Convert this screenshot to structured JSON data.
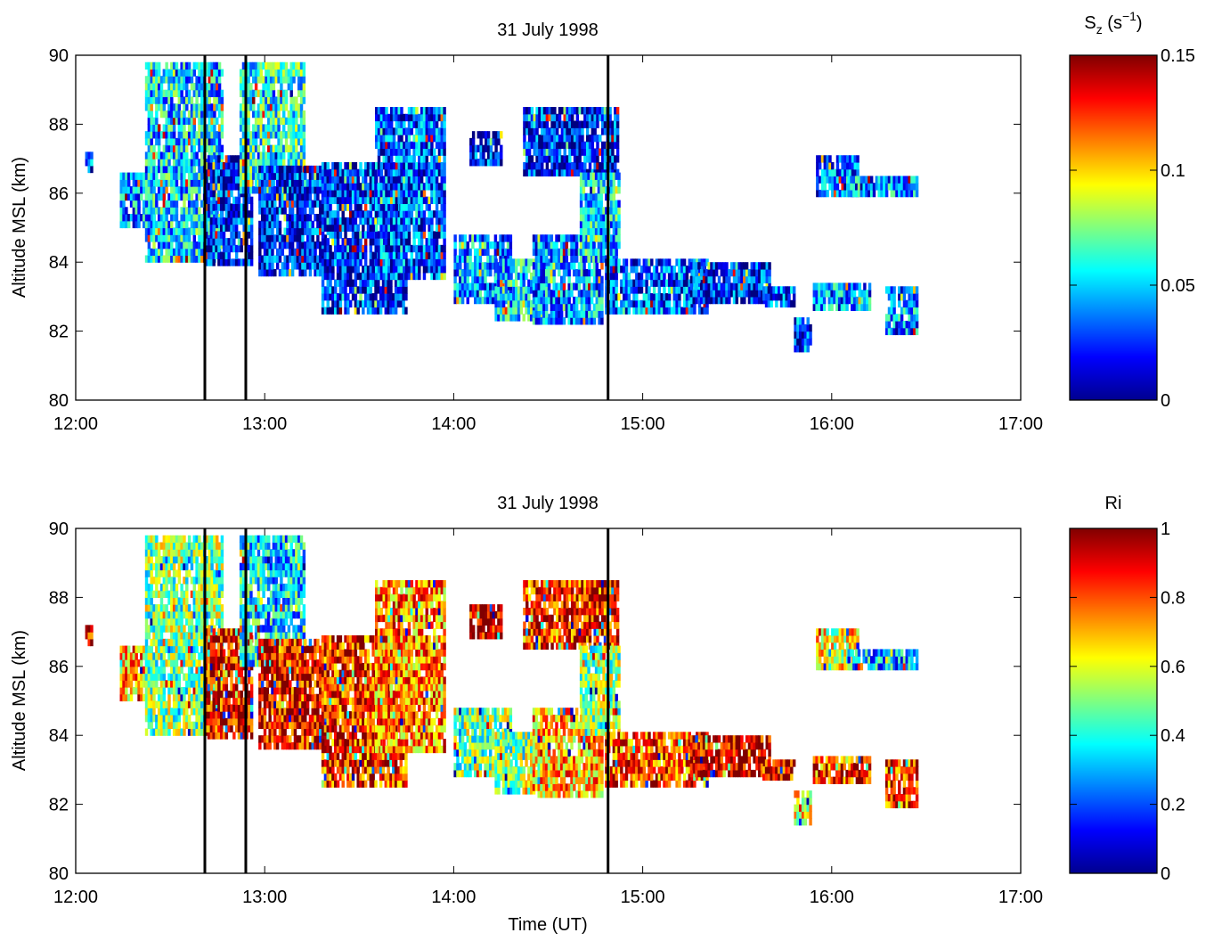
{
  "chart_data": [
    {
      "type": "heatmap",
      "title": "31 July 1998",
      "xlabel": "",
      "ylabel": "Altitude MSL (km)",
      "xlim": [
        "12:00",
        "17:00"
      ],
      "ylim": [
        80,
        90
      ],
      "xticks": [
        "12:00",
        "13:00",
        "14:00",
        "15:00",
        "16:00",
        "17:00"
      ],
      "yticks": [
        "80",
        "82",
        "84",
        "86",
        "88",
        "90"
      ],
      "colorbar": {
        "label_base": "S",
        "label_sub": "z",
        "label_unit_open": " (s",
        "label_sup": "−1",
        "label_unit_close": ")",
        "range": [
          0,
          0.15
        ],
        "ticks": [
          "0",
          "0.05",
          "0.1",
          "0.15"
        ],
        "colormap": "jet"
      },
      "vertical_lines": [
        "12:41",
        "12:54",
        "14:49"
      ],
      "regions": [
        {
          "t0": "12:03",
          "t1": "12:05",
          "z0": 86.6,
          "z1": 87.2,
          "level": 0.03
        },
        {
          "t0": "12:14",
          "t1": "12:25",
          "z0": 85.0,
          "z1": 86.5,
          "level": 0.04
        },
        {
          "t0": "12:22",
          "t1": "12:46",
          "z0": 84.0,
          "z1": 89.7,
          "level": 0.05
        },
        {
          "t0": "12:41",
          "t1": "12:56",
          "z0": 83.9,
          "z1": 87.0,
          "level": 0.02
        },
        {
          "t0": "12:52",
          "t1": "13:12",
          "z0": 86.0,
          "z1": 89.7,
          "level": 0.06
        },
        {
          "t0": "12:58",
          "t1": "13:20",
          "z0": 83.6,
          "z1": 86.8,
          "level": 0.02
        },
        {
          "t0": "13:18",
          "t1": "13:45",
          "z0": 82.5,
          "z1": 86.8,
          "level": 0.02
        },
        {
          "t0": "13:35",
          "t1": "13:57",
          "z0": 83.5,
          "z1": 88.4,
          "level": 0.03
        },
        {
          "t0": "14:00",
          "t1": "14:18",
          "z0": 82.8,
          "z1": 84.8,
          "level": 0.04
        },
        {
          "t0": "14:05",
          "t1": "14:15",
          "z0": 86.8,
          "z1": 87.8,
          "level": 0.02
        },
        {
          "t0": "14:13",
          "t1": "14:30",
          "z0": 82.3,
          "z1": 84.0,
          "level": 0.05
        },
        {
          "t0": "14:25",
          "t1": "14:47",
          "z0": 82.2,
          "z1": 84.8,
          "level": 0.04
        },
        {
          "t0": "14:22",
          "t1": "14:52",
          "z0": 86.5,
          "z1": 88.4,
          "level": 0.02
        },
        {
          "t0": "14:40",
          "t1": "14:52",
          "z0": 84.0,
          "z1": 86.6,
          "level": 0.05
        },
        {
          "t0": "14:48",
          "t1": "15:20",
          "z0": 82.5,
          "z1": 84.0,
          "level": 0.03
        },
        {
          "t0": "15:15",
          "t1": "15:40",
          "z0": 82.8,
          "z1": 84.0,
          "level": 0.02
        },
        {
          "t0": "15:38",
          "t1": "15:48",
          "z0": 82.7,
          "z1": 83.3,
          "level": 0.03
        },
        {
          "t0": "15:48",
          "t1": "15:53",
          "z0": 81.4,
          "z1": 82.3,
          "level": 0.03
        },
        {
          "t0": "15:54",
          "t1": "16:12",
          "z0": 82.6,
          "z1": 83.4,
          "level": 0.04
        },
        {
          "t0": "16:17",
          "t1": "16:27",
          "z0": 81.9,
          "z1": 83.3,
          "level": 0.04
        },
        {
          "t0": "15:55",
          "t1": "16:08",
          "z0": 85.9,
          "z1": 87.0,
          "level": 0.03
        },
        {
          "t0": "16:05",
          "t1": "16:27",
          "z0": 85.9,
          "z1": 86.4,
          "level": 0.04
        }
      ]
    },
    {
      "type": "heatmap",
      "title": "31 July 1998",
      "xlabel": "Time (UT)",
      "ylabel": "Altitude MSL (km)",
      "xlim": [
        "12:00",
        "17:00"
      ],
      "ylim": [
        80,
        90
      ],
      "xticks": [
        "12:00",
        "13:00",
        "14:00",
        "15:00",
        "16:00",
        "17:00"
      ],
      "yticks": [
        "80",
        "82",
        "84",
        "86",
        "88",
        "90"
      ],
      "colorbar": {
        "label": "Ri",
        "range": [
          0,
          1
        ],
        "ticks": [
          "0",
          "0.2",
          "0.4",
          "0.6",
          "0.8",
          "1"
        ],
        "colormap": "jet"
      },
      "vertical_lines": [
        "12:41",
        "12:54",
        "14:49"
      ],
      "regions": [
        {
          "t0": "12:03",
          "t1": "12:05",
          "z0": 86.6,
          "z1": 87.2,
          "level": 0.9
        },
        {
          "t0": "12:14",
          "t1": "12:25",
          "z0": 85.0,
          "z1": 86.5,
          "level": 0.7
        },
        {
          "t0": "12:22",
          "t1": "12:46",
          "z0": 84.0,
          "z1": 89.7,
          "level": 0.5
        },
        {
          "t0": "12:41",
          "t1": "12:56",
          "z0": 83.9,
          "z1": 87.0,
          "level": 0.9
        },
        {
          "t0": "12:52",
          "t1": "13:12",
          "z0": 86.0,
          "z1": 89.7,
          "level": 0.35
        },
        {
          "t0": "12:58",
          "t1": "13:20",
          "z0": 83.6,
          "z1": 86.8,
          "level": 0.9
        },
        {
          "t0": "13:18",
          "t1": "13:45",
          "z0": 82.5,
          "z1": 86.8,
          "level": 0.85
        },
        {
          "t0": "13:35",
          "t1": "13:57",
          "z0": 83.5,
          "z1": 88.4,
          "level": 0.75
        },
        {
          "t0": "14:00",
          "t1": "14:18",
          "z0": 82.8,
          "z1": 84.8,
          "level": 0.5
        },
        {
          "t0": "14:05",
          "t1": "14:15",
          "z0": 86.8,
          "z1": 87.8,
          "level": 0.95
        },
        {
          "t0": "14:13",
          "t1": "14:30",
          "z0": 82.3,
          "z1": 84.0,
          "level": 0.5
        },
        {
          "t0": "14:25",
          "t1": "14:47",
          "z0": 82.2,
          "z1": 84.8,
          "level": 0.7
        },
        {
          "t0": "14:22",
          "t1": "14:52",
          "z0": 86.5,
          "z1": 88.4,
          "level": 0.85
        },
        {
          "t0": "14:40",
          "t1": "14:52",
          "z0": 84.0,
          "z1": 86.6,
          "level": 0.5
        },
        {
          "t0": "14:48",
          "t1": "15:20",
          "z0": 82.5,
          "z1": 84.0,
          "level": 0.8
        },
        {
          "t0": "15:15",
          "t1": "15:40",
          "z0": 82.8,
          "z1": 84.0,
          "level": 0.95
        },
        {
          "t0": "15:38",
          "t1": "15:48",
          "z0": 82.7,
          "z1": 83.3,
          "level": 0.9
        },
        {
          "t0": "15:48",
          "t1": "15:53",
          "z0": 81.4,
          "z1": 82.3,
          "level": 0.6
        },
        {
          "t0": "15:54",
          "t1": "16:12",
          "z0": 82.6,
          "z1": 83.4,
          "level": 0.85
        },
        {
          "t0": "16:17",
          "t1": "16:27",
          "z0": 81.9,
          "z1": 83.3,
          "level": 0.85
        },
        {
          "t0": "15:55",
          "t1": "16:08",
          "z0": 85.9,
          "z1": 87.0,
          "level": 0.6
        },
        {
          "t0": "16:05",
          "t1": "16:27",
          "z0": 85.9,
          "z1": 86.4,
          "level": 0.3
        }
      ]
    }
  ]
}
